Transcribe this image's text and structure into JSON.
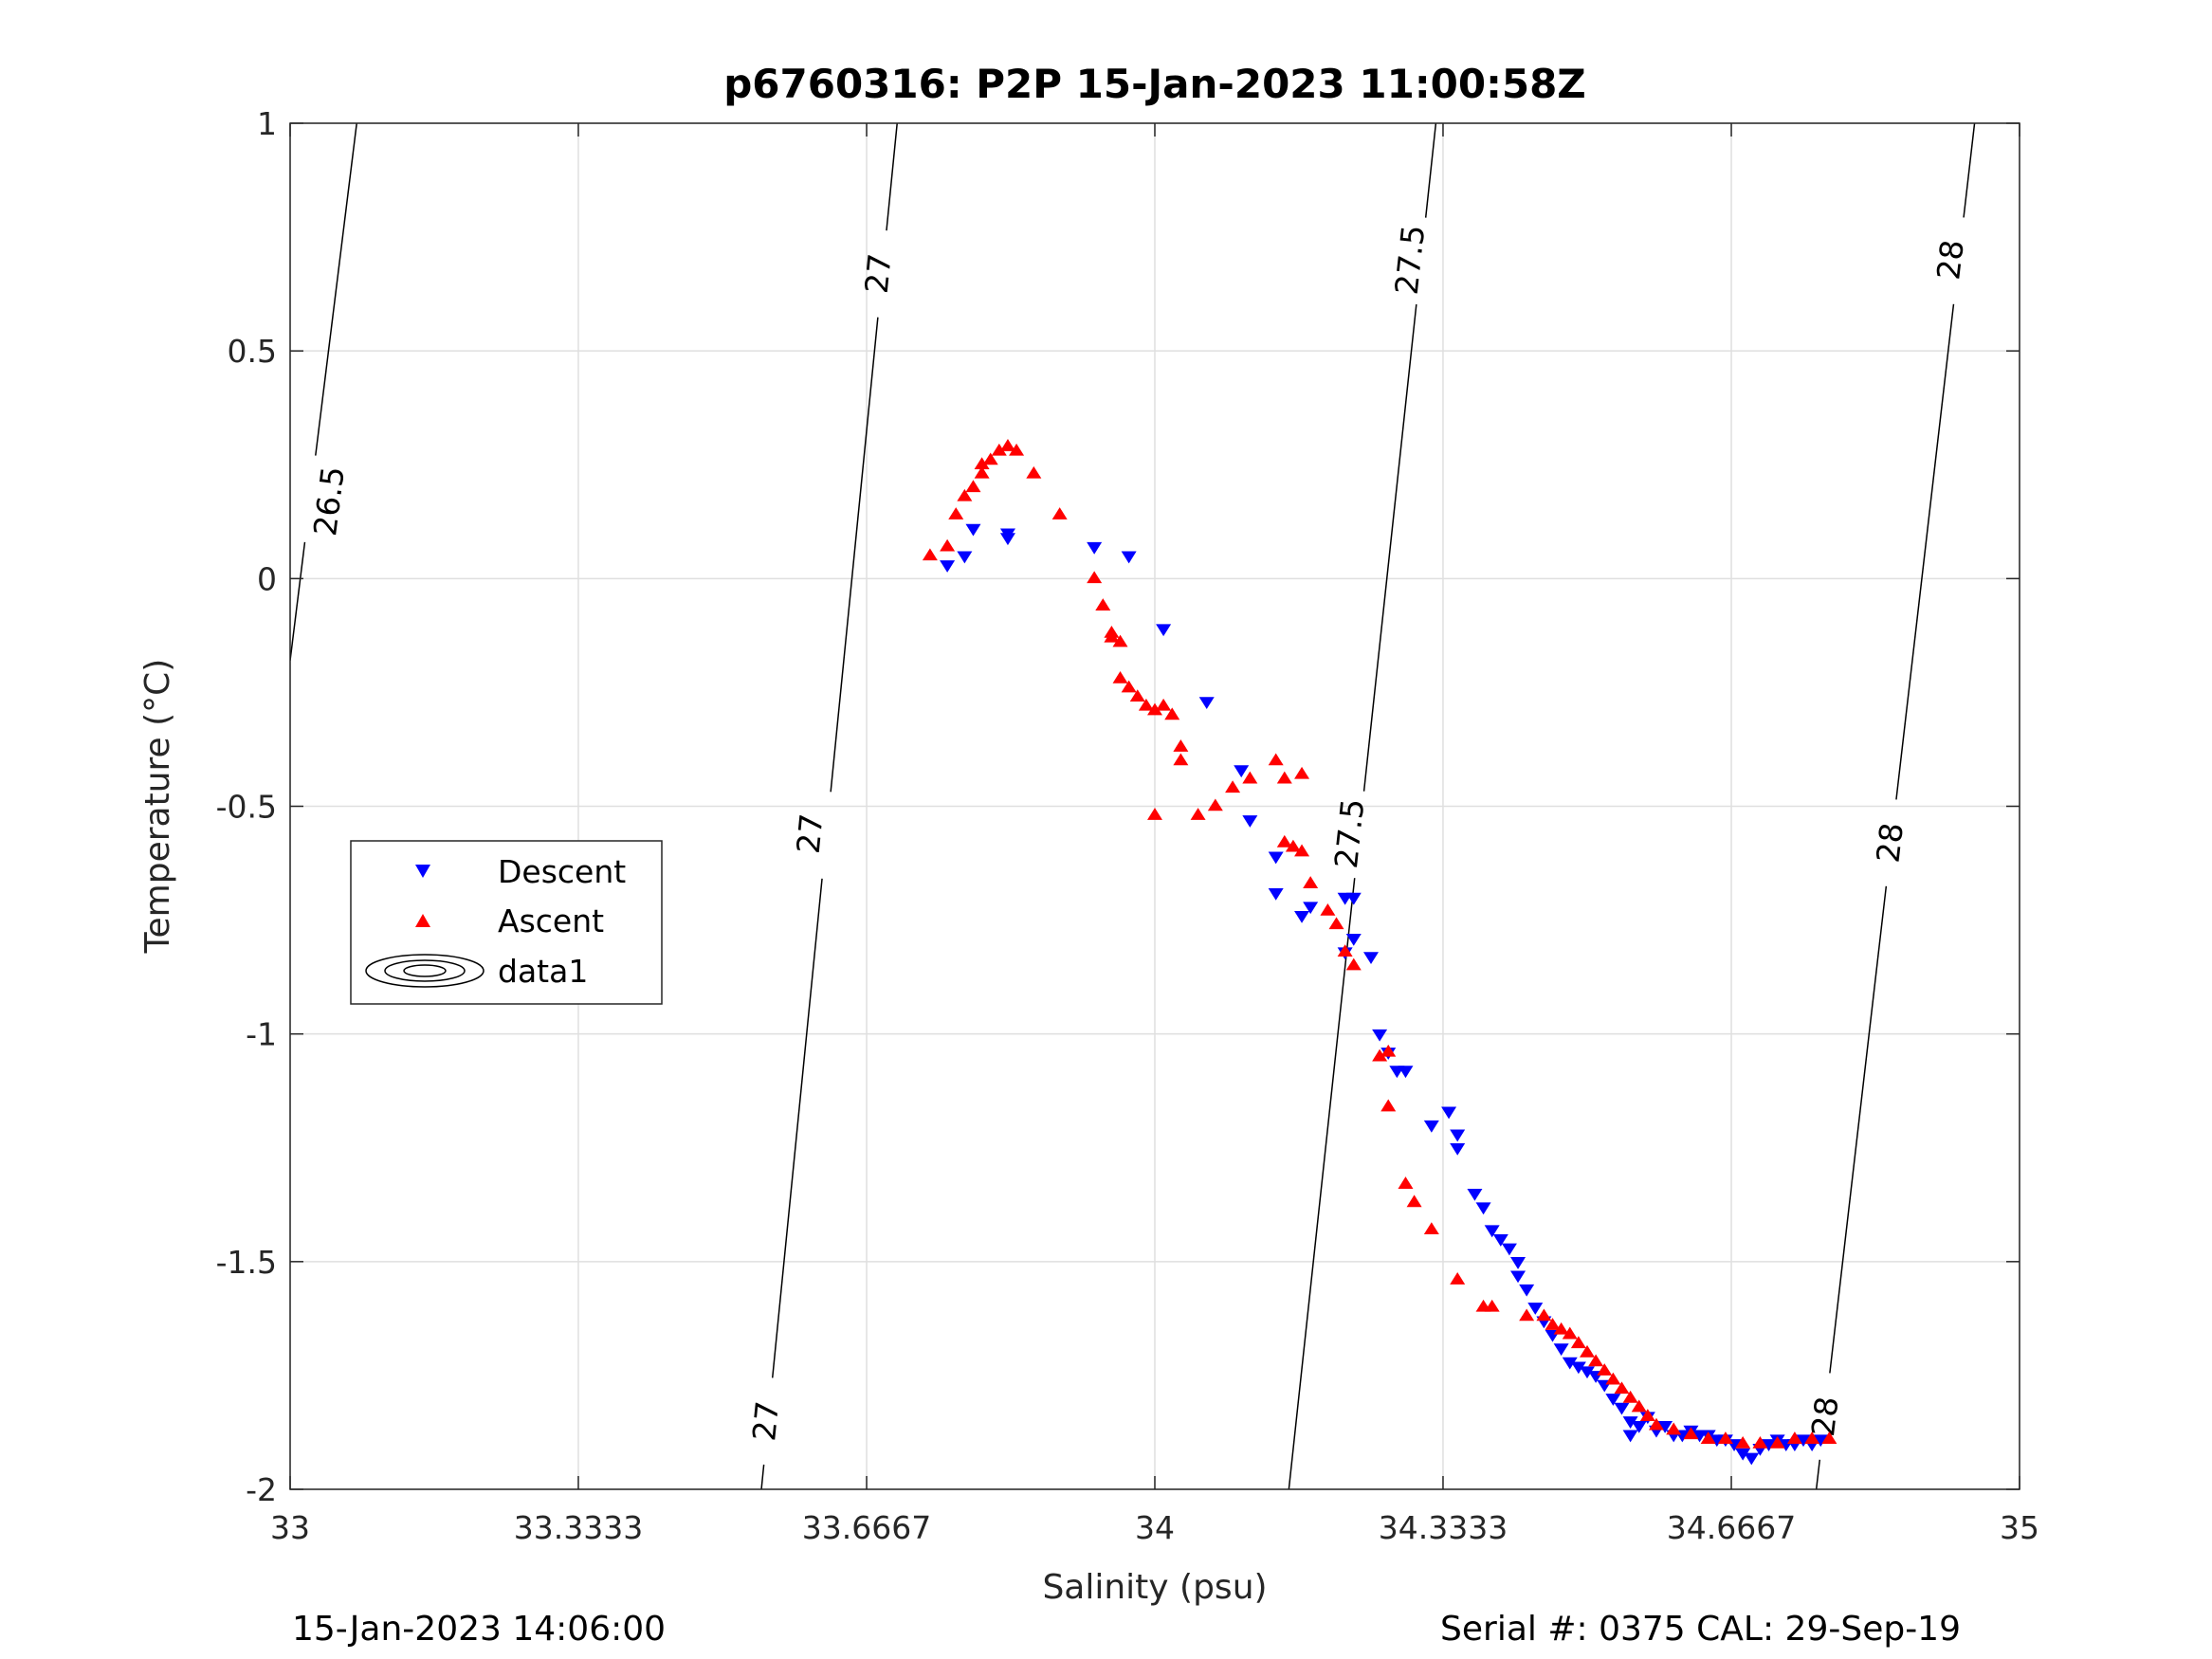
{
  "chart_data": {
    "type": "scatter",
    "title": "p6760316: P2P 15-Jan-2023 11:00:58Z",
    "xlabel": "Salinity (psu)",
    "ylabel": "Temperature (°C)",
    "xlim": [
      33,
      35
    ],
    "ylim": [
      -2,
      1
    ],
    "x_ticks": [
      "33",
      "33.3333",
      "33.6667",
      "34",
      "34.3333",
      "34.6667",
      "35"
    ],
    "y_ticks": [
      "-2",
      "-1.5",
      "-1",
      "-0.5",
      "0",
      "0.5",
      "1"
    ],
    "grid": true,
    "legend_position": "middle-left",
    "footer_left": "15-Jan-2023 14:06:00",
    "footer_right": "Serial #: 0375  CAL: 29-Sep-19",
    "series": [
      {
        "name": "Descent",
        "marker": "triangle-down",
        "color": "#0000ff",
        "points": [
          [
            33.76,
            0.03
          ],
          [
            33.78,
            0.05
          ],
          [
            33.79,
            0.11
          ],
          [
            33.83,
            0.1
          ],
          [
            33.83,
            0.09
          ],
          [
            33.93,
            0.07
          ],
          [
            33.97,
            0.05
          ],
          [
            34.01,
            -0.11
          ],
          [
            34.06,
            -0.27
          ],
          [
            34.1,
            -0.42
          ],
          [
            34.11,
            -0.53
          ],
          [
            34.14,
            -0.61
          ],
          [
            34.14,
            -0.69
          ],
          [
            34.17,
            -0.74
          ],
          [
            34.18,
            -0.72
          ],
          [
            34.22,
            -0.7
          ],
          [
            34.23,
            -0.7
          ],
          [
            34.23,
            -0.79
          ],
          [
            34.22,
            -0.82
          ],
          [
            34.25,
            -0.83
          ],
          [
            34.26,
            -1.0
          ],
          [
            34.27,
            -1.04
          ],
          [
            34.28,
            -1.08
          ],
          [
            34.29,
            -1.08
          ],
          [
            34.32,
            -1.2
          ],
          [
            34.34,
            -1.17
          ],
          [
            34.35,
            -1.25
          ],
          [
            34.35,
            -1.22
          ],
          [
            34.37,
            -1.35
          ],
          [
            34.38,
            -1.38
          ],
          [
            34.39,
            -1.43
          ],
          [
            34.4,
            -1.45
          ],
          [
            34.41,
            -1.47
          ],
          [
            34.42,
            -1.5
          ],
          [
            34.42,
            -1.53
          ],
          [
            34.43,
            -1.56
          ],
          [
            34.44,
            -1.6
          ],
          [
            34.45,
            -1.63
          ],
          [
            34.46,
            -1.66
          ],
          [
            34.47,
            -1.69
          ],
          [
            34.48,
            -1.72
          ],
          [
            34.49,
            -1.73
          ],
          [
            34.5,
            -1.74
          ],
          [
            34.51,
            -1.75
          ],
          [
            34.52,
            -1.77
          ],
          [
            34.53,
            -1.8
          ],
          [
            34.54,
            -1.82
          ],
          [
            34.55,
            -1.85
          ],
          [
            34.55,
            -1.88
          ],
          [
            34.56,
            -1.86
          ],
          [
            34.57,
            -1.84
          ],
          [
            34.58,
            -1.87
          ],
          [
            34.59,
            -1.86
          ],
          [
            34.6,
            -1.88
          ],
          [
            34.61,
            -1.88
          ],
          [
            34.62,
            -1.87
          ],
          [
            34.63,
            -1.88
          ],
          [
            34.64,
            -1.88
          ],
          [
            34.65,
            -1.89
          ],
          [
            34.66,
            -1.89
          ],
          [
            34.67,
            -1.9
          ],
          [
            34.68,
            -1.92
          ],
          [
            34.69,
            -1.93
          ],
          [
            34.7,
            -1.91
          ],
          [
            34.71,
            -1.9
          ],
          [
            34.72,
            -1.89
          ],
          [
            34.73,
            -1.9
          ],
          [
            34.74,
            -1.9
          ],
          [
            34.75,
            -1.89
          ],
          [
            34.76,
            -1.9
          ],
          [
            34.77,
            -1.89
          ]
        ]
      },
      {
        "name": "Ascent",
        "marker": "triangle-up",
        "color": "#ff0000",
        "points": [
          [
            33.74,
            0.05
          ],
          [
            33.76,
            0.07
          ],
          [
            33.77,
            0.14
          ],
          [
            33.78,
            0.18
          ],
          [
            33.79,
            0.2
          ],
          [
            33.8,
            0.23
          ],
          [
            33.8,
            0.25
          ],
          [
            33.81,
            0.26
          ],
          [
            33.82,
            0.28
          ],
          [
            33.83,
            0.29
          ],
          [
            33.84,
            0.28
          ],
          [
            33.86,
            0.23
          ],
          [
            33.89,
            0.14
          ],
          [
            33.93,
            0.0
          ],
          [
            33.94,
            -0.06
          ],
          [
            33.95,
            -0.12
          ],
          [
            33.95,
            -0.13
          ],
          [
            33.96,
            -0.14
          ],
          [
            33.96,
            -0.22
          ],
          [
            33.97,
            -0.24
          ],
          [
            33.98,
            -0.26
          ],
          [
            33.99,
            -0.28
          ],
          [
            34.0,
            -0.29
          ],
          [
            34.01,
            -0.28
          ],
          [
            34.02,
            -0.3
          ],
          [
            34.03,
            -0.37
          ],
          [
            34.03,
            -0.4
          ],
          [
            34.0,
            -0.52
          ],
          [
            34.05,
            -0.52
          ],
          [
            34.07,
            -0.5
          ],
          [
            34.09,
            -0.46
          ],
          [
            34.11,
            -0.44
          ],
          [
            34.14,
            -0.4
          ],
          [
            34.15,
            -0.44
          ],
          [
            34.17,
            -0.43
          ],
          [
            34.15,
            -0.58
          ],
          [
            34.16,
            -0.59
          ],
          [
            34.17,
            -0.6
          ],
          [
            34.18,
            -0.67
          ],
          [
            34.2,
            -0.73
          ],
          [
            34.21,
            -0.76
          ],
          [
            34.22,
            -0.82
          ],
          [
            34.23,
            -0.85
          ],
          [
            34.26,
            -1.05
          ],
          [
            34.27,
            -1.04
          ],
          [
            34.27,
            -1.16
          ],
          [
            34.29,
            -1.33
          ],
          [
            34.3,
            -1.37
          ],
          [
            34.32,
            -1.43
          ],
          [
            34.35,
            -1.54
          ],
          [
            34.38,
            -1.6
          ],
          [
            34.39,
            -1.6
          ],
          [
            34.43,
            -1.62
          ],
          [
            34.45,
            -1.62
          ],
          [
            34.46,
            -1.64
          ],
          [
            34.47,
            -1.65
          ],
          [
            34.48,
            -1.66
          ],
          [
            34.49,
            -1.68
          ],
          [
            34.5,
            -1.7
          ],
          [
            34.51,
            -1.72
          ],
          [
            34.52,
            -1.74
          ],
          [
            34.53,
            -1.76
          ],
          [
            34.54,
            -1.78
          ],
          [
            34.55,
            -1.8
          ],
          [
            34.56,
            -1.82
          ],
          [
            34.57,
            -1.84
          ],
          [
            34.58,
            -1.86
          ],
          [
            34.6,
            -1.87
          ],
          [
            34.62,
            -1.88
          ],
          [
            34.64,
            -1.89
          ],
          [
            34.66,
            -1.89
          ],
          [
            34.68,
            -1.9
          ],
          [
            34.7,
            -1.9
          ],
          [
            34.72,
            -1.9
          ],
          [
            34.74,
            -1.89
          ],
          [
            34.76,
            -1.89
          ],
          [
            34.78,
            -1.89
          ]
        ]
      },
      {
        "name": "data1",
        "marker": "contour",
        "color": "#000000",
        "contour_levels": [
          {
            "label": "26.5",
            "line": [
              [
                33.077,
                1.0
              ],
              [
                33.0,
                -0.18
              ]
            ],
            "label_positions": [
              [
                33.045,
                0.17
              ]
            ]
          },
          {
            "label": "27",
            "line": [
              [
                33.702,
                1.0
              ],
              [
                33.545,
                -2.0
              ]
            ],
            "label_positions": [
              [
                33.68,
                0.67
              ],
              [
                33.601,
                -0.56
              ],
              [
                33.55,
                -1.85
              ]
            ]
          },
          {
            "label": "27.5",
            "line": [
              [
                34.325,
                1.0
              ],
              [
                34.155,
                -2.0
              ]
            ],
            "label_positions": [
              [
                34.295,
                0.7
              ],
              [
                34.225,
                -0.56
              ]
            ]
          },
          {
            "label": "28",
            "line": [
              [
                34.948,
                1.0
              ],
              [
                34.765,
                -2.0
              ]
            ],
            "label_positions": [
              [
                34.92,
                0.7
              ],
              [
                34.85,
                -0.58
              ],
              [
                34.775,
                -1.84
              ]
            ]
          }
        ]
      }
    ]
  }
}
